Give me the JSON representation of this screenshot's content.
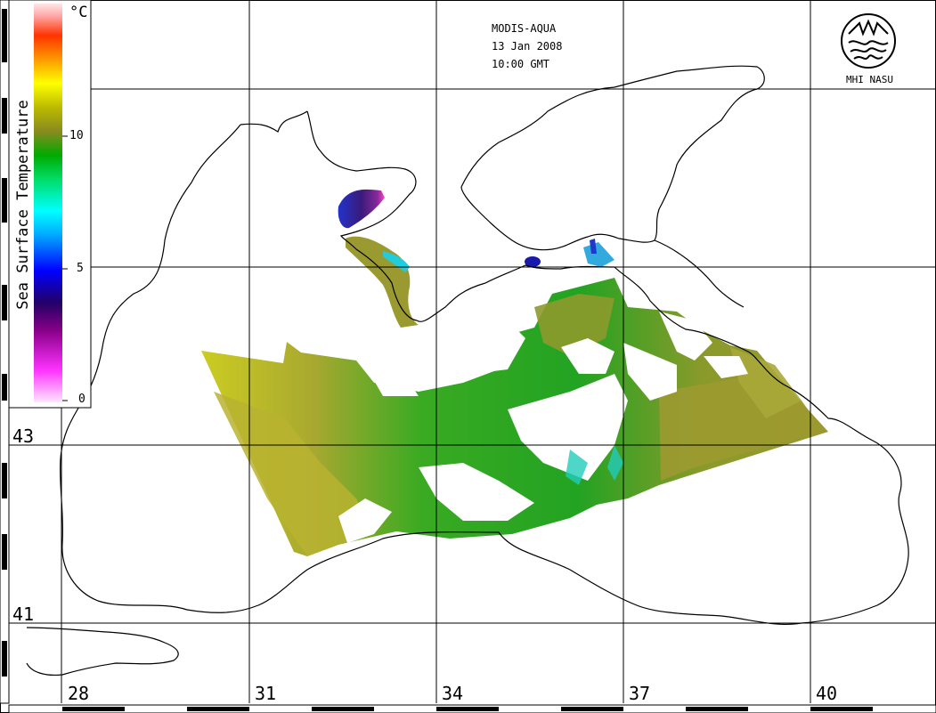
{
  "map": {
    "satellite": "MODIS-AQUA",
    "date": "13 Jan 2008",
    "time": "10:00 GMT",
    "organization": "MHI NASU",
    "legend": {
      "title": "Sea Surface Temperature",
      "unit": "°C",
      "ticks": [
        "10",
        "5",
        "0"
      ]
    },
    "latitudes": [
      "43",
      "41"
    ],
    "longitudes": [
      "28",
      "31",
      "34",
      "37",
      "40"
    ],
    "colors": {
      "coastline": "#000000",
      "sst_warm": "#b6ad2a",
      "sst_mid": "#1fa01f",
      "sst_cold": "#2a1fa6"
    }
  }
}
